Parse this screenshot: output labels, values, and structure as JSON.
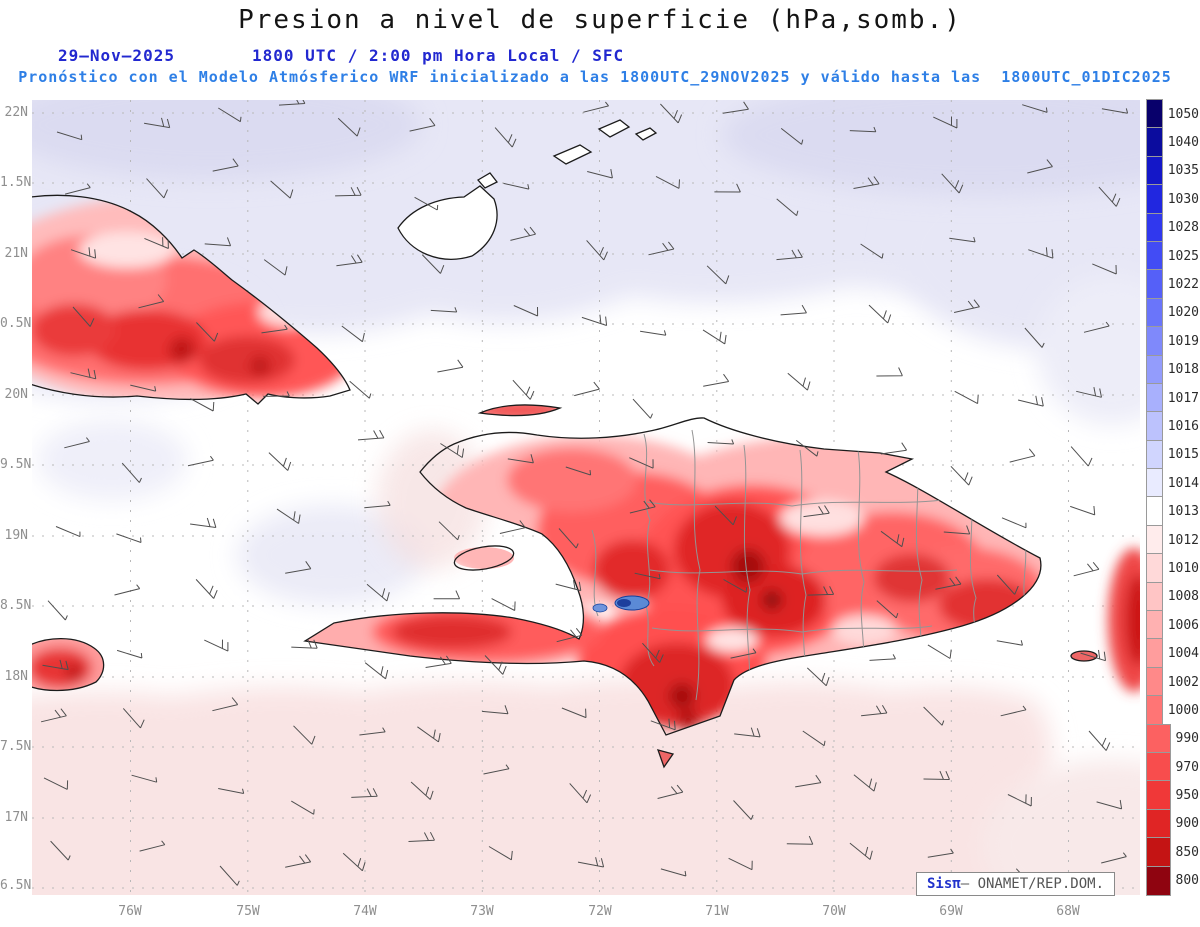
{
  "title": "Presion a nivel de superficie (hPa,somb.)",
  "header": {
    "date": "29–Nov–2025",
    "datetime": "1800 UTC / 2:00 pm Hora Local / SFC",
    "forecast": "Pronóstico con el Modelo Atmósferico WRF inicializado a las 1800UTC_29NOV2025 y válido hasta las  1800UTC_01DIC2025"
  },
  "axes": {
    "lat": [
      "22N",
      "1.5N",
      "21N",
      "0.5N",
      "20N",
      "9.5N",
      "19N",
      "8.5N",
      "18N",
      "7.5N",
      "17N",
      "6.5N"
    ],
    "lon": [
      "76W",
      "75W",
      "74W",
      "73W",
      "72W",
      "71W",
      "70W",
      "69W",
      "68W"
    ]
  },
  "colorbar": {
    "entries": [
      {
        "label": "1050",
        "color": "#08006b"
      },
      {
        "label": "1040",
        "color": "#0b0c9e"
      },
      {
        "label": "1035",
        "color": "#1417c8"
      },
      {
        "label": "1030",
        "color": "#2127e0"
      },
      {
        "label": "1028",
        "color": "#3038ee"
      },
      {
        "label": "1025",
        "color": "#424cf5"
      },
      {
        "label": "1022",
        "color": "#5560f8"
      },
      {
        "label": "1020",
        "color": "#6a75fa"
      },
      {
        "label": "1019",
        "color": "#7f89fb"
      },
      {
        "label": "1018",
        "color": "#939cfc"
      },
      {
        "label": "1017",
        "color": "#a8b0fd"
      },
      {
        "label": "1016",
        "color": "#bcc2fd"
      },
      {
        "label": "1015",
        "color": "#d0d5fe"
      },
      {
        "label": "1014",
        "color": "#e9ebff"
      },
      {
        "label": "1013",
        "color": "#ffffff"
      },
      {
        "label": "1012",
        "color": "#ffecec"
      },
      {
        "label": "1010",
        "color": "#ffd9d9"
      },
      {
        "label": "1008",
        "color": "#ffc5c5"
      },
      {
        "label": "1006",
        "color": "#ffb1b1"
      },
      {
        "label": "1004",
        "color": "#ff9d9d"
      },
      {
        "label": "1002",
        "color": "#ff8989"
      },
      {
        "label": "1000",
        "color": "#ff7575"
      },
      {
        "label": "990",
        "color": "#fc6161"
      },
      {
        "label": "970",
        "color": "#f84d4d"
      },
      {
        "label": "950",
        "color": "#f03838"
      },
      {
        "label": "900",
        "color": "#e02525"
      },
      {
        "label": "850",
        "color": "#c41414"
      },
      {
        "label": "800",
        "color": "#8f0410"
      }
    ]
  },
  "watermark": {
    "brand": "Sisπ",
    "text": "– ONAMET/REP.DOM."
  },
  "colors": {
    "header_blue": "#2228d0",
    "forecast_blue": "#2e7fe6",
    "sea_tint_high_pressure": "#e7e7f6",
    "sea_tint_low_pressure": "#f9e4e4",
    "land_shading_red": "#e02626"
  }
}
